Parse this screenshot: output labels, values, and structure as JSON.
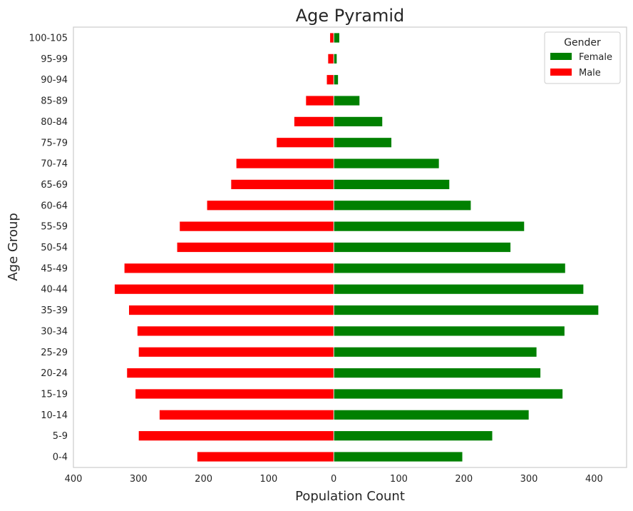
{
  "chart_data": {
    "type": "bar",
    "orientation": "horizontal",
    "title": "Age Pyramid",
    "xlabel": "Population Count",
    "ylabel": "Age Group",
    "xlim": [
      -400,
      450
    ],
    "x_ticks": [
      -400,
      -300,
      -200,
      -100,
      0,
      100,
      200,
      300,
      400
    ],
    "x_tick_labels": [
      "400",
      "300",
      "200",
      "100",
      "0",
      "100",
      "200",
      "300",
      "400"
    ],
    "grid": false,
    "legend": {
      "title": "Gender",
      "position": "top-right"
    },
    "categories": [
      "0-4",
      "5-9",
      "10-14",
      "15-19",
      "20-24",
      "25-29",
      "30-34",
      "35-39",
      "40-44",
      "45-49",
      "50-54",
      "55-59",
      "60-64",
      "65-69",
      "70-74",
      "75-79",
      "80-84",
      "85-89",
      "90-94",
      "95-99",
      "100-105"
    ],
    "series": [
      {
        "name": "Female",
        "color": "#008000",
        "values": [
          198,
          244,
          300,
          352,
          318,
          312,
          355,
          407,
          384,
          356,
          272,
          293,
          211,
          178,
          162,
          89,
          75,
          40,
          7,
          5,
          9
        ]
      },
      {
        "name": "Male",
        "color": "#ff0000",
        "values": [
          210,
          300,
          268,
          305,
          318,
          300,
          302,
          315,
          337,
          322,
          241,
          237,
          195,
          158,
          150,
          88,
          61,
          43,
          11,
          9,
          6
        ]
      }
    ]
  }
}
